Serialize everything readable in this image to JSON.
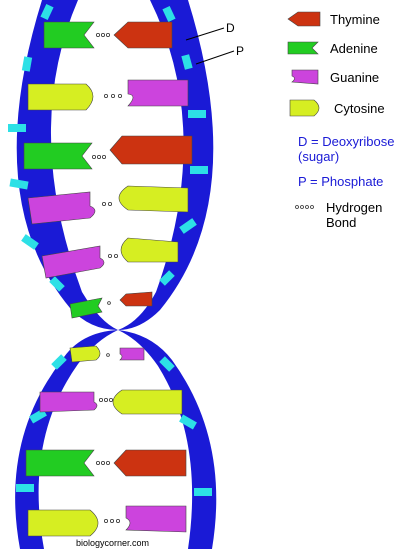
{
  "legend": {
    "thymine": "Thymine",
    "adenine": "Adenine",
    "guanine": "Guanine",
    "cytosine": "Cytosine",
    "deoxyribose_line1": "D = Deoxyribose",
    "deoxyribose_line2": "(sugar)",
    "phosphate": "P = Phosphate",
    "hbond_line1": "Hydrogen",
    "hbond_line2": "Bond"
  },
  "labels": {
    "d": "D",
    "p": "P"
  },
  "credit": "biologycorner.com",
  "colors": {
    "backbone": "#1a1ad6",
    "phosphate": "#2de0e6",
    "thymine": "#cc3311",
    "adenine": "#22cc22",
    "guanine": "#cc44dd",
    "cytosine": "#d6ee22"
  }
}
